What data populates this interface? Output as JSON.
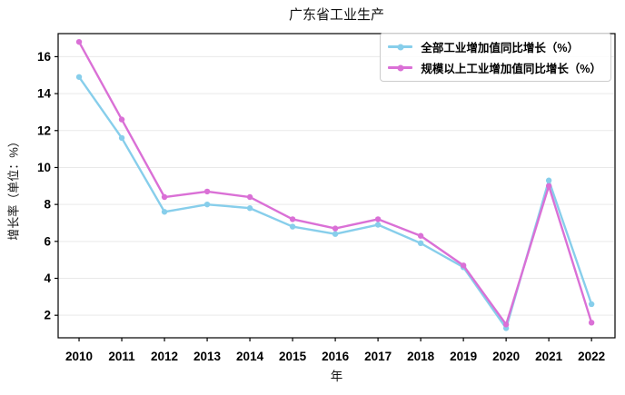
{
  "chart_data": {
    "type": "line",
    "title": "广东省工业生产",
    "xlabel": "年",
    "ylabel": "增长率（单位：%）",
    "x": [
      2010,
      2011,
      2012,
      2013,
      2014,
      2015,
      2016,
      2017,
      2018,
      2019,
      2020,
      2021,
      2022
    ],
    "series": [
      {
        "name": "全部工业增加值同比增长（%）",
        "color": "#87CEEB",
        "values": [
          14.9,
          11.6,
          7.6,
          8.0,
          7.8,
          6.8,
          6.4,
          6.9,
          5.9,
          4.6,
          1.3,
          9.3,
          2.6
        ]
      },
      {
        "name": "规模以上工业增加值同比增长（%）",
        "color": "#DA70D6",
        "values": [
          16.8,
          12.6,
          8.4,
          8.7,
          8.4,
          7.2,
          6.7,
          7.2,
          6.3,
          4.7,
          1.5,
          9.0,
          1.6
        ]
      }
    ],
    "yticks": [
      2,
      4,
      6,
      8,
      10,
      12,
      14,
      16
    ],
    "xlim": [
      2009.51,
      2022.55
    ],
    "ylim": [
      0.78,
      17.25
    ],
    "grid": "horizontal",
    "legend_position": "upper right",
    "colors": {
      "grid": "#e9e9e9",
      "spine": "#000000",
      "background": "#ffffff",
      "tick_label": "#000000"
    }
  }
}
